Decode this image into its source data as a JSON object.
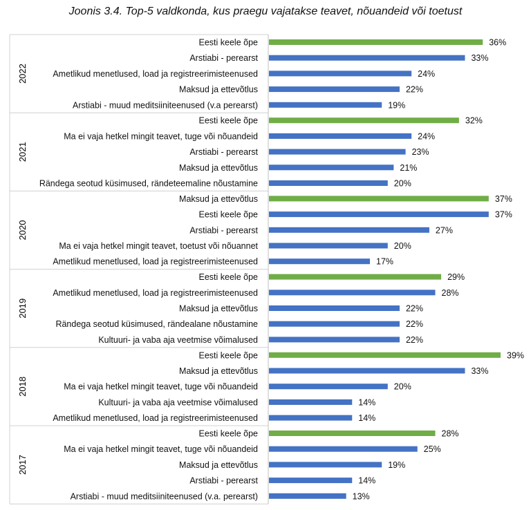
{
  "chart_data": {
    "type": "bar",
    "orientation": "horizontal",
    "title": "Joonis 3.4. Top-5 valdkonda, kus praegu vajatakse teavet, nõuandeid või toetust",
    "xlabel": "",
    "ylabel": "",
    "value_suffix": "%",
    "xlim": [
      0,
      40
    ],
    "colors": {
      "highlight": "#70AD47",
      "default": "#4472C4"
    },
    "groups": [
      {
        "year": "2022",
        "items": [
          {
            "label": "Eesti keele õpe",
            "value": 36,
            "highlight": true
          },
          {
            "label": "Arstiabi - perearst",
            "value": 33
          },
          {
            "label": "Ametlikud menetlused, load ja registreerimisteenused",
            "value": 24
          },
          {
            "label": "Maksud ja ettevõtlus",
            "value": 22
          },
          {
            "label": "Arstiabi - muud meditsiiniteenused (v.a perearst)",
            "value": 19
          }
        ]
      },
      {
        "year": "2021",
        "items": [
          {
            "label": "Eesti keele õpe",
            "value": 32,
            "highlight": true
          },
          {
            "label": "Ma ei vaja hetkel mingit teavet, tuge või nõuandeid",
            "value": 24
          },
          {
            "label": "Arstiabi - perearst",
            "value": 23
          },
          {
            "label": "Maksud ja ettevõtlus",
            "value": 21
          },
          {
            "label": "Rändega seotud küsimused, rändeteemaline nõustamine",
            "value": 20
          }
        ]
      },
      {
        "year": "2020",
        "items": [
          {
            "label": "Maksud ja ettevõtlus",
            "value": 37,
            "highlight": true
          },
          {
            "label": "Eesti keele õpe",
            "value": 37
          },
          {
            "label": "Arstiabi - perearst",
            "value": 27
          },
          {
            "label": "Ma ei vaja hetkel mingit teavet, toetust või nõuannet",
            "value": 20
          },
          {
            "label": "Ametlikud menetlused, load ja registreerimisteenused",
            "value": 17
          }
        ]
      },
      {
        "year": "2019",
        "items": [
          {
            "label": "Eesti keele õpe",
            "value": 29,
            "highlight": true
          },
          {
            "label": "Ametlikud menetlused, load ja registreerimisteenused",
            "value": 28
          },
          {
            "label": "Maksud ja ettevõtlus",
            "value": 22
          },
          {
            "label": "Rändega seotud küsimused, rändealane nõustamine",
            "value": 22
          },
          {
            "label": "Kultuuri- ja vaba aja veetmise võimalused",
            "value": 22
          }
        ]
      },
      {
        "year": "2018",
        "items": [
          {
            "label": "Eesti keele õpe",
            "value": 39,
            "highlight": true
          },
          {
            "label": "Maksud ja ettevõtlus",
            "value": 33
          },
          {
            "label": "Ma ei vaja hetkel mingit teavet, tuge või nõuandeid",
            "value": 20
          },
          {
            "label": "Kultuuri- ja vaba aja veetmise võimalused",
            "value": 14
          },
          {
            "label": "Ametlikud menetlused, load ja registreerimisteenused",
            "value": 14
          }
        ]
      },
      {
        "year": "2017",
        "items": [
          {
            "label": "Eesti keele õpe",
            "value": 28,
            "highlight": true
          },
          {
            "label": "Ma ei vaja hetkel mingit teavet, tuge või nõuandeid",
            "value": 25
          },
          {
            "label": "Maksud ja ettevõtlus",
            "value": 19
          },
          {
            "label": "Arstiabi - perearst",
            "value": 14
          },
          {
            "label": "Arstiabi - muud meditsiiniteenused (v.a. perearst)",
            "value": 13
          }
        ]
      }
    ]
  }
}
